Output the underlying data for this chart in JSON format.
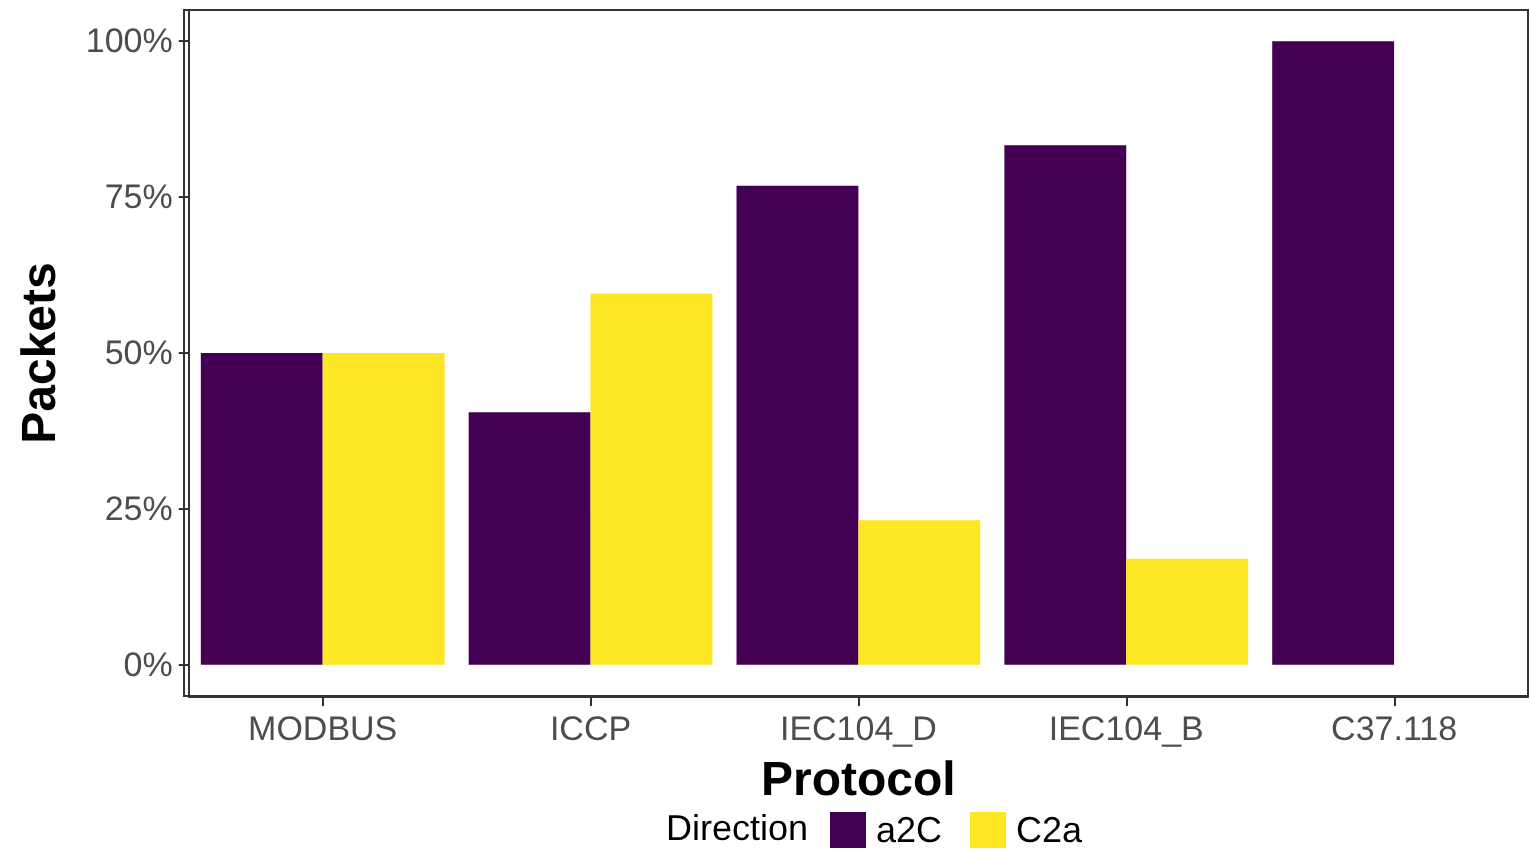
{
  "chart_data": {
    "type": "bar",
    "xlabel": "Protocol",
    "ylabel": "Packets",
    "legend_title": "Direction",
    "categories": [
      "MODBUS",
      "ICCP",
      "IEC104_D",
      "IEC104_B",
      "C37.118"
    ],
    "series": [
      {
        "name": "a2C",
        "color": "#440154",
        "values": [
          50,
          40.5,
          76.8,
          83.3,
          100
        ]
      },
      {
        "name": "C2a",
        "color": "#fde725",
        "values": [
          50,
          59.5,
          23.2,
          17,
          0
        ]
      }
    ],
    "ylim": [
      -5,
      105
    ],
    "yticks": [
      {
        "value": 0,
        "label": "0%"
      },
      {
        "value": 25,
        "label": "25%"
      },
      {
        "value": 50,
        "label": "50%"
      },
      {
        "value": 75,
        "label": "75%"
      },
      {
        "value": 100,
        "label": "100%"
      }
    ],
    "grid": false,
    "legend": "bottom"
  }
}
